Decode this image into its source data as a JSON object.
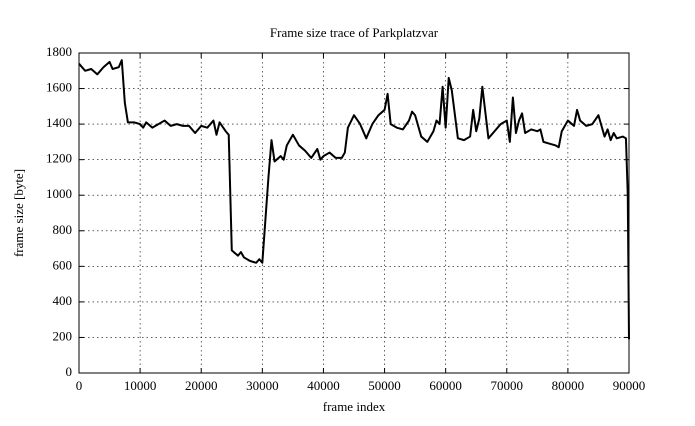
{
  "chart_data": {
    "type": "line",
    "title": "Frame size trace of Parkplatzvar",
    "x_label": "frame index",
    "y_label": "frame size [byte]",
    "color": "#000000",
    "grid": true,
    "xlim": [
      0,
      90000
    ],
    "xticks": [
      0,
      10000,
      20000,
      30000,
      40000,
      50000,
      60000,
      70000,
      80000,
      90000
    ],
    "ylim": [
      0,
      1800
    ],
    "yticks": [
      0,
      200,
      400,
      600,
      800,
      1000,
      1200,
      1400,
      1600,
      1800
    ],
    "x": [
      0,
      1000,
      2000,
      3000,
      4000,
      5000,
      5500,
      6500,
      7000,
      7500,
      8000,
      9000,
      10000,
      10500,
      11000,
      12000,
      13000,
      14000,
      15000,
      16000,
      17000,
      18000,
      19000,
      20000,
      21000,
      22000,
      22500,
      23000,
      24000,
      24500,
      25000,
      26000,
      26500,
      27000,
      28000,
      29000,
      29500,
      30000,
      31000,
      31500,
      32000,
      33000,
      33500,
      34000,
      35000,
      36000,
      37000,
      38000,
      39000,
      39500,
      40000,
      41000,
      42000,
      43000,
      43500,
      44000,
      45000,
      46000,
      47000,
      48000,
      49000,
      50000,
      50500,
      51000,
      52000,
      53000,
      54000,
      54500,
      55000,
      56000,
      57000,
      58000,
      58500,
      59000,
      59500,
      60000,
      60500,
      61000,
      62000,
      63000,
      64000,
      64500,
      65000,
      65500,
      66000,
      67000,
      68000,
      69000,
      70000,
      70500,
      71000,
      71500,
      72000,
      72500,
      73000,
      74000,
      75000,
      75500,
      76000,
      77000,
      78000,
      78500,
      79000,
      80000,
      81000,
      81500,
      82000,
      83000,
      84000,
      85000,
      86000,
      86500,
      87000,
      87500,
      88000,
      89000,
      89500,
      89800,
      90000
    ],
    "values": [
      1740,
      1700,
      1710,
      1680,
      1720,
      1750,
      1710,
      1720,
      1760,
      1520,
      1410,
      1410,
      1400,
      1380,
      1410,
      1380,
      1400,
      1420,
      1390,
      1400,
      1390,
      1390,
      1350,
      1390,
      1380,
      1420,
      1340,
      1410,
      1360,
      1340,
      690,
      660,
      680,
      650,
      630,
      620,
      640,
      620,
      1100,
      1310,
      1190,
      1220,
      1200,
      1280,
      1340,
      1280,
      1250,
      1210,
      1260,
      1200,
      1220,
      1240,
      1210,
      1210,
      1240,
      1380,
      1450,
      1400,
      1320,
      1400,
      1450,
      1480,
      1570,
      1400,
      1380,
      1370,
      1420,
      1470,
      1450,
      1330,
      1300,
      1360,
      1420,
      1400,
      1610,
      1380,
      1660,
      1590,
      1320,
      1310,
      1330,
      1480,
      1360,
      1430,
      1610,
      1320,
      1360,
      1400,
      1420,
      1300,
      1550,
      1350,
      1420,
      1460,
      1350,
      1370,
      1360,
      1370,
      1300,
      1290,
      1280,
      1270,
      1360,
      1420,
      1390,
      1480,
      1420,
      1390,
      1400,
      1450,
      1330,
      1370,
      1310,
      1350,
      1320,
      1330,
      1320,
      1000,
      190
    ]
  }
}
